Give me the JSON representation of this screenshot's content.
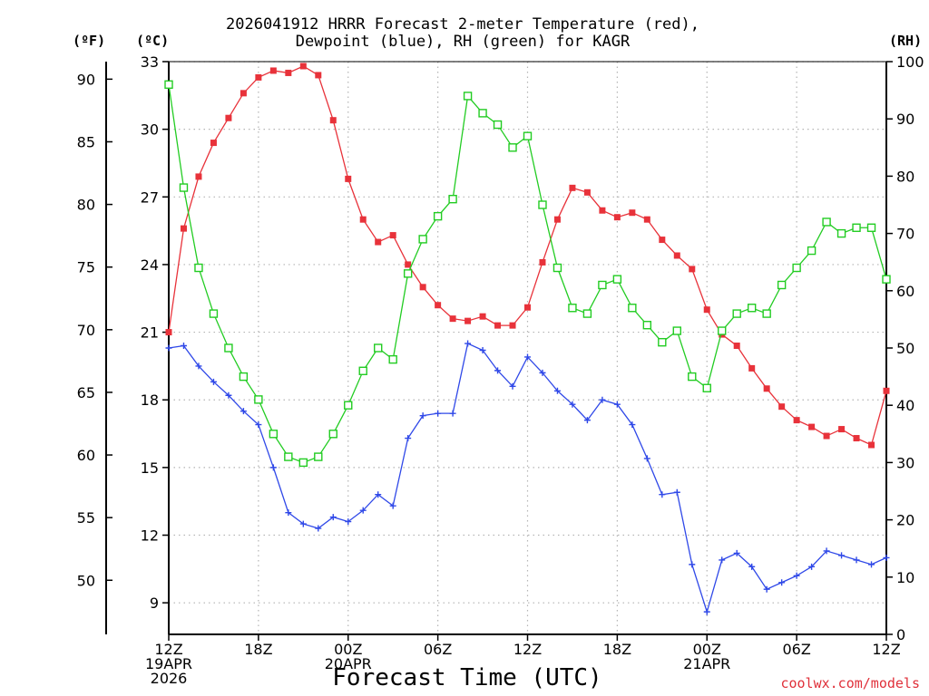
{
  "header": {
    "title_line1": "2026041912 HRRR Forecast 2-meter Temperature (red),",
    "title_line2": "Dewpoint (blue), RH (green) for KAGR",
    "unit_f": "(ºF)",
    "unit_c": "(ºC)",
    "unit_rh": "(RH)"
  },
  "footer": {
    "xlabel": "Forecast Time (UTC)",
    "credit": "coolwx.com/models"
  },
  "chart_data": {
    "type": "line",
    "title": "2026041912 HRRR Forecast 2-meter Temperature (red), Dewpoint (blue), RH (green) for KAGR",
    "xlabel": "Forecast Time (UTC)",
    "x_hours_start": "2026-04-19 12Z",
    "xlim": [
      0,
      48
    ],
    "x_ticks": [
      {
        "h": 0,
        "lines": [
          "12Z",
          "19APR",
          "2026"
        ]
      },
      {
        "h": 6,
        "lines": [
          "18Z"
        ]
      },
      {
        "h": 12,
        "lines": [
          "00Z",
          "20APR"
        ]
      },
      {
        "h": 18,
        "lines": [
          "06Z"
        ]
      },
      {
        "h": 24,
        "lines": [
          "12Z"
        ]
      },
      {
        "h": 30,
        "lines": [
          "18Z"
        ]
      },
      {
        "h": 36,
        "lines": [
          "00Z",
          "21APR"
        ]
      },
      {
        "h": 42,
        "lines": [
          "06Z"
        ]
      },
      {
        "h": 48,
        "lines": [
          "12Z"
        ]
      }
    ],
    "celsius_axis": {
      "ticks": [
        9,
        12,
        15,
        18,
        21,
        24,
        27,
        30,
        33
      ],
      "lim": [
        7.6,
        33
      ]
    },
    "fahrenheit_axis": {
      "ticks": [
        50,
        55,
        60,
        65,
        70,
        75,
        80,
        85,
        90
      ]
    },
    "rh_axis": {
      "ticks": [
        0,
        10,
        20,
        30,
        40,
        50,
        60,
        70,
        80,
        90,
        100
      ],
      "lim": [
        0,
        100
      ]
    },
    "grid": true,
    "series": [
      {
        "name": "Temperature",
        "color": "#e8323a",
        "marker": "filled-square",
        "axis": "celsius",
        "values": [
          21.0,
          25.6,
          27.9,
          29.4,
          30.5,
          31.6,
          32.3,
          32.6,
          32.5,
          32.8,
          32.4,
          30.4,
          27.8,
          26.0,
          25.0,
          25.3,
          24.0,
          23.0,
          22.2,
          21.6,
          21.5,
          21.7,
          21.3,
          21.3,
          22.1,
          24.1,
          26.0,
          27.4,
          27.2,
          26.4,
          26.1,
          26.3,
          26.0,
          25.1,
          24.4,
          23.8,
          22.0,
          20.9,
          20.4,
          19.4,
          18.5,
          17.7,
          17.1,
          16.8,
          16.4,
          16.7,
          16.3,
          16.0,
          18.4
        ]
      },
      {
        "name": "Dewpoint",
        "color": "#2f48e8",
        "marker": "plus",
        "axis": "celsius",
        "values": [
          20.3,
          20.4,
          19.5,
          18.8,
          18.2,
          17.5,
          16.9,
          15.0,
          13.0,
          12.5,
          12.3,
          12.8,
          12.6,
          13.1,
          13.8,
          13.3,
          16.3,
          17.3,
          17.4,
          17.4,
          20.5,
          20.2,
          19.3,
          18.6,
          19.9,
          19.2,
          18.4,
          17.8,
          17.1,
          18.0,
          17.8,
          16.9,
          15.4,
          13.8,
          13.9,
          10.7,
          8.6,
          10.9,
          11.2,
          10.6,
          9.6,
          9.9,
          10.2,
          10.6,
          11.3,
          11.1,
          10.9,
          10.7,
          11.0
        ]
      },
      {
        "name": "RH",
        "color": "#22cc22",
        "marker": "open-square",
        "axis": "rh",
        "values": [
          96,
          78,
          64,
          56,
          50,
          45,
          41,
          35,
          31,
          30,
          31,
          35,
          40,
          46,
          50,
          48,
          63,
          69,
          73,
          76,
          94,
          91,
          89,
          85,
          87,
          75,
          64,
          57,
          56,
          61,
          62,
          57,
          54,
          51,
          53,
          45,
          43,
          53,
          56,
          57,
          56,
          61,
          64,
          67,
          72,
          70,
          71,
          71,
          62
        ]
      }
    ]
  }
}
